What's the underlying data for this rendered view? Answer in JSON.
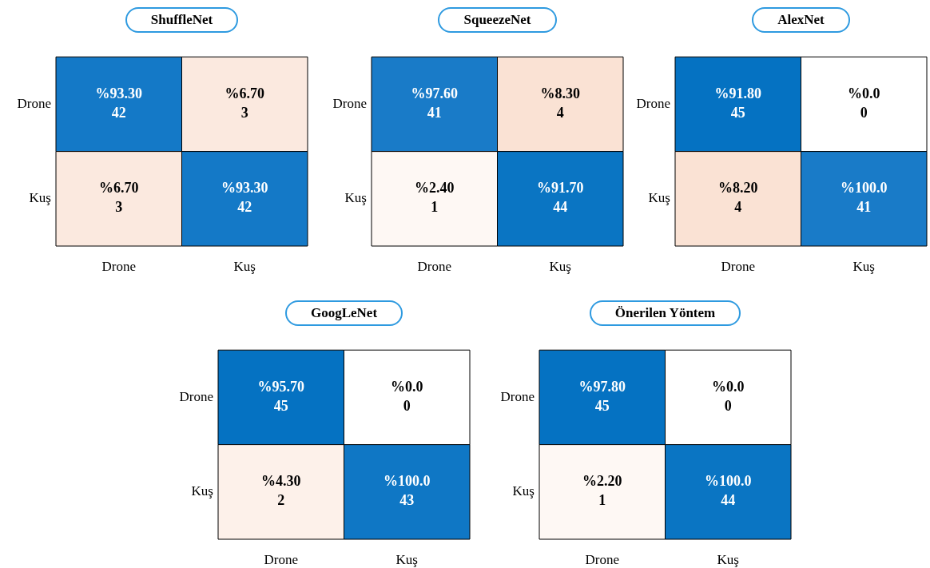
{
  "chart_data": [
    {
      "type": "heatmap",
      "title": "ShuffleNet",
      "categories": [
        "Drone",
        "Kuş"
      ],
      "y_categories": [
        "Drone",
        "Kuş"
      ],
      "cells": [
        [
          42,
          3
        ],
        [
          3,
          42
        ]
      ],
      "data_labels": true,
      "annotations": [
        "%93.30",
        "%6.70",
        "%6.70",
        "%93.30"
      ]
    },
    {
      "type": "heatmap",
      "title": "SqueezeNet",
      "categories": [
        "Drone",
        "Kuş"
      ],
      "y_categories": [
        "Drone",
        "Kuş"
      ],
      "cells": [
        [
          41,
          4
        ],
        [
          1,
          44
        ]
      ],
      "data_labels": true,
      "annotations": [
        "%97.60",
        "%8.30",
        "%2.40",
        "%91.70"
      ]
    },
    {
      "type": "heatmap",
      "title": "AlexNet",
      "categories": [
        "Drone",
        "Kuş"
      ],
      "y_categories": [
        "Drone",
        "Kuş"
      ],
      "cells": [
        [
          45,
          0
        ],
        [
          4,
          41
        ]
      ],
      "data_labels": true,
      "annotations": [
        "%91.80",
        "%0.0",
        "%8.20",
        "%100.0"
      ]
    },
    {
      "type": "heatmap",
      "title": "GoogLeNet",
      "categories": [
        "Drone",
        "Kuş"
      ],
      "y_categories": [
        "Drone",
        "Kuş"
      ],
      "cells": [
        [
          45,
          0
        ],
        [
          2,
          43
        ]
      ],
      "data_labels": true,
      "annotations": [
        "%95.70",
        "%0.0",
        "%4.30",
        "%100.0"
      ]
    },
    {
      "type": "heatmap",
      "title": "Önerilen Yöntem",
      "categories": [
        "Drone",
        "Kuş"
      ],
      "y_categories": [
        "Drone",
        "Kuş"
      ],
      "cells": [
        [
          45,
          0
        ],
        [
          1,
          44
        ]
      ],
      "data_labels": true,
      "annotations": [
        "%97.80",
        "%0.0",
        "%2.20",
        "%100.0"
      ]
    }
  ]
}
